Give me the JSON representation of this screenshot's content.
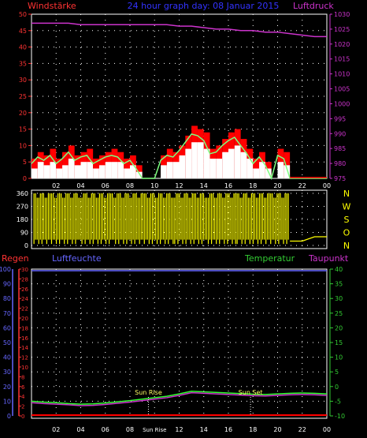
{
  "header": {
    "left_label": "Windstärke",
    "center_label": "24 hour graph day: 08 Januar 2015",
    "right_label": "Luftdruck"
  },
  "lower_header": {
    "rain_label": "Regen",
    "humidity_label": "Luftfeuchte",
    "temperature_label": "Temperatur",
    "dewpoint_label": "Taupunkt"
  },
  "colors": {
    "wind_gust": "#ff0000",
    "wind_avg": "#ffffff",
    "wind_mean_line": "#7fff7f",
    "pressure": "#cc33cc",
    "direction": "#ffff00",
    "temperature": "#33ff33",
    "dewpoint": "#cc33cc",
    "rain": "#ff0000",
    "humidity_axis": "#6666ff",
    "rain_axis": "#ff3333",
    "temp_axis": "#33cc33",
    "center_label": "#3333ff",
    "grid": "#ffffff"
  },
  "chart_data": [
    {
      "type": "area",
      "title": "Windstärke",
      "x_tick_labels": [
        "02",
        "04",
        "06",
        "08",
        "10",
        "12",
        "14",
        "16",
        "18",
        "20",
        "22",
        "00"
      ],
      "y_ticks": [
        0,
        5,
        10,
        15,
        20,
        25,
        30,
        35,
        40,
        45,
        50
      ],
      "ylim": [
        0,
        50
      ],
      "hours": [
        0,
        0.5,
        1,
        1.5,
        2,
        2.5,
        3,
        3.5,
        4,
        4.5,
        5,
        5.5,
        6,
        6.5,
        7,
        7.5,
        8,
        8.5,
        9,
        9.5,
        10,
        10.5,
        11,
        11.5,
        12,
        12.5,
        13,
        13.5,
        14,
        14.5,
        15,
        15.5,
        16,
        16.5,
        17,
        17.5,
        18,
        18.5,
        19,
        19.5,
        20,
        20.5,
        21,
        21.5,
        22,
        22.5,
        23,
        23.5,
        24
      ],
      "series": [
        {
          "name": "gust",
          "values": [
            6,
            8,
            7,
            9,
            6,
            8,
            10,
            7,
            8,
            9,
            6,
            7,
            8,
            9,
            8,
            6,
            7,
            4,
            0,
            0,
            0,
            7,
            9,
            8,
            10,
            13,
            16,
            15,
            14,
            9,
            10,
            12,
            14,
            15,
            12,
            9,
            6,
            8,
            5,
            0,
            9,
            8,
            0,
            0,
            0,
            0,
            0,
            0,
            0
          ]
        },
        {
          "name": "average",
          "values": [
            3,
            5,
            4,
            5,
            3,
            4,
            6,
            4,
            5,
            5,
            3,
            4,
            5,
            5,
            5,
            3,
            4,
            2,
            0,
            0,
            0,
            4,
            5,
            5,
            7,
            9,
            11,
            11,
            9,
            6,
            6,
            8,
            9,
            10,
            8,
            6,
            3,
            5,
            3,
            0,
            5,
            4,
            0,
            0,
            0,
            0,
            0,
            0,
            0
          ]
        }
      ],
      "pressure_axis": {
        "label": "Luftdruck",
        "y_ticks": [
          975,
          980,
          985,
          990,
          995,
          1000,
          1005,
          1010,
          1015,
          1020,
          1025,
          1030
        ],
        "ylim": [
          975,
          1030
        ],
        "hours": [
          0,
          1,
          2,
          3,
          4,
          5,
          6,
          7,
          8,
          9,
          10,
          11,
          12,
          13,
          14,
          15,
          16,
          17,
          18,
          19,
          20,
          21,
          22,
          23,
          24
        ],
        "values": [
          1027,
          1027,
          1027,
          1027,
          1026.5,
          1026.5,
          1026.5,
          1026.5,
          1026.5,
          1026.5,
          1026.5,
          1026.5,
          1026,
          1026,
          1025.5,
          1025,
          1025,
          1024.5,
          1024.5,
          1024,
          1024,
          1023.5,
          1023,
          1022.5,
          1022.5
        ]
      }
    },
    {
      "type": "scatter",
      "title": "Windrichtung",
      "y_ticks": [
        0,
        90,
        180,
        270,
        360
      ],
      "ylim": [
        0,
        360
      ],
      "right_labels": [
        "N",
        "W",
        "S",
        "O",
        "N"
      ],
      "hours": [
        0.3,
        0.8,
        1.2,
        1.6,
        2.1,
        2.5,
        3,
        3.4,
        3.8,
        4.3,
        4.7,
        5.2,
        5.6,
        6.1,
        6.5,
        7,
        7.4,
        7.9,
        8.3,
        9.6,
        10.1,
        10.5,
        11,
        11.4,
        11.9,
        12.3,
        12.8,
        13.2,
        13.7,
        14.1,
        14.6,
        15,
        15.5,
        15.9,
        16.4,
        16.8,
        17.3,
        17.7,
        18.2,
        18.6,
        19.1,
        19.5,
        20,
        20.4,
        20.8
      ],
      "values": [
        180,
        270,
        90,
        300,
        150,
        240,
        60,
        330,
        200,
        100,
        280,
        170,
        320,
        90,
        250,
        140,
        300,
        60,
        200,
        270,
        120,
        330,
        180,
        260,
        90,
        310,
        200,
        140,
        280,
        60,
        230,
        320,
        170,
        90,
        290,
        150,
        250,
        300,
        100,
        210,
        330,
        180,
        60,
        270,
        140
      ],
      "tail": {
        "hours": [
          21,
          22,
          23,
          24
        ],
        "values": [
          30,
          30,
          60,
          60
        ]
      }
    },
    {
      "type": "line",
      "x_tick_labels": [
        "02",
        "04",
        "06",
        "08",
        "Sun Rise",
        "12",
        "14",
        "16",
        "18",
        "20",
        "22",
        "00"
      ],
      "annotations": [
        {
          "label": "Sun Rise",
          "hour": 9.5
        },
        {
          "label": "Sun Set",
          "hour": 17.8
        }
      ],
      "humidity_axis": {
        "label": "Luftfeuchte",
        "y_ticks": [
          0,
          10,
          20,
          30,
          40,
          50,
          60,
          70,
          80,
          90,
          100
        ],
        "ylim": [
          0,
          100
        ]
      },
      "rain_axis": {
        "label": "Regen",
        "y_ticks": [
          0,
          2,
          4,
          6,
          8,
          10,
          12,
          14,
          16,
          18,
          20,
          22,
          24,
          26,
          28,
          30
        ],
        "ylim": [
          0,
          30
        ]
      },
      "temp_axis": {
        "label": "Temperatur",
        "y_ticks": [
          -10,
          -5,
          0,
          5,
          10,
          15,
          20,
          25,
          30,
          35,
          40
        ],
        "ylim": [
          -10,
          40
        ]
      },
      "hours": [
        0,
        1,
        2,
        3,
        4,
        5,
        6,
        7,
        8,
        9,
        10,
        11,
        12,
        13,
        14,
        15,
        16,
        17,
        18,
        19,
        20,
        21,
        22,
        23,
        24
      ],
      "series": [
        {
          "name": "Temperatur",
          "values": [
            -5,
            -5.3,
            -5.5,
            -5.8,
            -6,
            -5.9,
            -5.6,
            -5.2,
            -4.8,
            -4.3,
            -3.8,
            -3.3,
            -2.5,
            -1.6,
            -1.8,
            -2,
            -2.2,
            -2.4,
            -2.6,
            -2.7,
            -2.5,
            -2.3,
            -2.2,
            -2.3,
            -2.5
          ]
        },
        {
          "name": "Taupunkt",
          "values": [
            -5.5,
            -5.8,
            -6,
            -6.2,
            -6.5,
            -6.4,
            -6.1,
            -5.7,
            -5.3,
            -4.8,
            -4.3,
            -3.8,
            -3,
            -2.1,
            -2.3,
            -2.5,
            -2.7,
            -2.9,
            -3.1,
            -3.2,
            -3,
            -2.8,
            -2.7,
            -2.8,
            -3
          ]
        },
        {
          "name": "Regen",
          "values": [
            0,
            0,
            0,
            0,
            0,
            0,
            0,
            0,
            0,
            0,
            0,
            0,
            0,
            0,
            0,
            0,
            0,
            0,
            0,
            0,
            0,
            0,
            0,
            0,
            0
          ]
        }
      ]
    }
  ]
}
